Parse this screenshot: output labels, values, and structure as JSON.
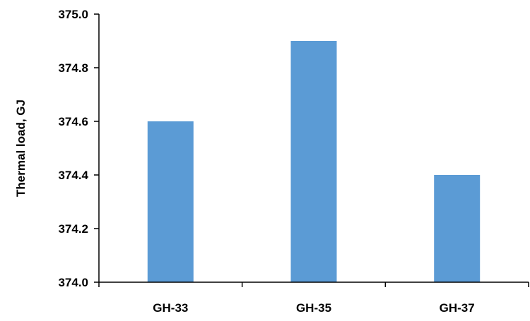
{
  "chart_data": {
    "type": "bar",
    "title": "",
    "xlabel": "",
    "ylabel": "Thermal load, GJ",
    "categories": [
      "GH-33",
      "GH-35",
      "GH-37"
    ],
    "values": [
      374.6,
      374.9,
      374.4
    ],
    "ylim": [
      374.0,
      375.0
    ],
    "yticks": [
      "374.0",
      "374.2",
      "374.4",
      "374.6",
      "374.8",
      "375.0"
    ],
    "grid": false,
    "legend": "none",
    "bar_color": "#5B9BD5",
    "axis_color": "#000000"
  }
}
